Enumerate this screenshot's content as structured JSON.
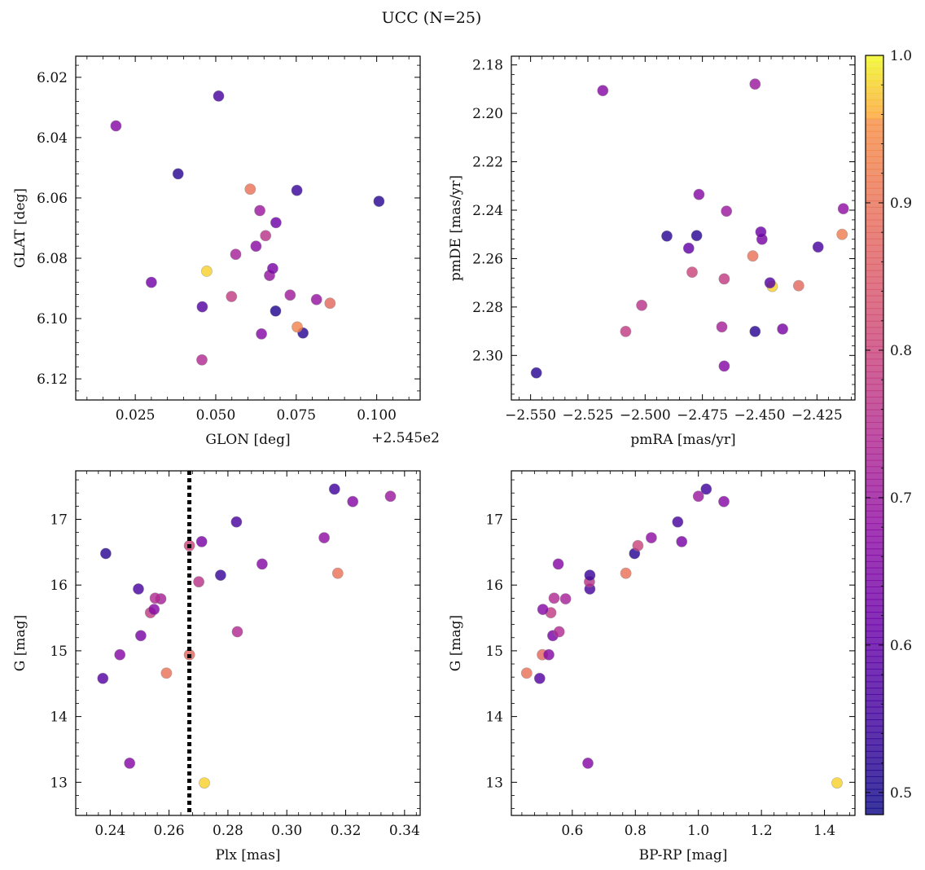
{
  "figure": {
    "title": "UCC (N=25)"
  },
  "colorbar": {
    "range": [
      0.485,
      1.0
    ],
    "ticks": [
      0.5,
      0.6,
      0.7,
      0.8,
      0.9,
      1.0
    ],
    "tick_labels": [
      "0.5",
      "0.6",
      "0.7",
      "0.8",
      "0.9",
      "1.0"
    ],
    "colormap": "plasma"
  },
  "chart_data": [
    {
      "type": "scatter",
      "xlabel": "GLON [deg]",
      "ylabel": "GLAT [deg]",
      "offset_text": "+2.545e2",
      "xlim": [
        254.5065,
        254.6135
      ],
      "ylim": [
        6.013,
        6.127
      ],
      "xticks": [
        254.525,
        254.55,
        254.575,
        254.6
      ],
      "xtick_labels": [
        "0.025",
        "0.050",
        "0.075",
        "0.100"
      ],
      "yticks": [
        6.02,
        6.04,
        6.06,
        6.08,
        6.1,
        6.12
      ],
      "ytick_labels": [
        "6.02",
        "6.04",
        "6.06",
        "6.08",
        "6.10",
        "6.12"
      ],
      "points": [
        {
          "x": 254.5457,
          "y": 6.1137,
          "c": 0.74
        },
        {
          "x": 254.5642,
          "y": 6.1051,
          "c": 0.66
        },
        {
          "x": 254.5771,
          "y": 6.1048,
          "c": 0.52
        },
        {
          "x": 254.5753,
          "y": 6.1028,
          "c": 0.93
        },
        {
          "x": 254.5458,
          "y": 6.0961,
          "c": 0.58
        },
        {
          "x": 254.5686,
          "y": 6.0975,
          "c": 0.51
        },
        {
          "x": 254.5855,
          "y": 6.0949,
          "c": 0.88
        },
        {
          "x": 254.5549,
          "y": 6.0927,
          "c": 0.78
        },
        {
          "x": 254.5813,
          "y": 6.0937,
          "c": 0.69
        },
        {
          "x": 254.5731,
          "y": 6.0922,
          "c": 0.71
        },
        {
          "x": 254.53,
          "y": 6.088,
          "c": 0.63
        },
        {
          "x": 254.5472,
          "y": 6.0843,
          "c": 0.98
        },
        {
          "x": 254.5667,
          "y": 6.0857,
          "c": 0.69
        },
        {
          "x": 254.5677,
          "y": 6.0834,
          "c": 0.64
        },
        {
          "x": 254.5562,
          "y": 6.0787,
          "c": 0.72
        },
        {
          "x": 254.5625,
          "y": 6.076,
          "c": 0.67
        },
        {
          "x": 254.5655,
          "y": 6.0725,
          "c": 0.76
        },
        {
          "x": 254.5687,
          "y": 6.0682,
          "c": 0.62
        },
        {
          "x": 254.5637,
          "y": 6.0642,
          "c": 0.7
        },
        {
          "x": 254.6007,
          "y": 6.0611,
          "c": 0.52
        },
        {
          "x": 254.5607,
          "y": 6.0571,
          "c": 0.9
        },
        {
          "x": 254.5752,
          "y": 6.0575,
          "c": 0.54
        },
        {
          "x": 254.5383,
          "y": 6.052,
          "c": 0.52
        },
        {
          "x": 254.519,
          "y": 6.0361,
          "c": 0.66
        },
        {
          "x": 254.5509,
          "y": 6.0262,
          "c": 0.56
        }
      ]
    },
    {
      "type": "scatter",
      "xlabel": "pmRA [mas/yr]",
      "ylabel": "pmDE [mas/yr]",
      "xlim": [
        -2.5584,
        -2.4084
      ],
      "ylim": [
        2.1764,
        2.3184
      ],
      "xticks": [
        -2.55,
        -2.525,
        -2.5,
        -2.475,
        -2.45,
        -2.425
      ],
      "xtick_labels": [
        "−2.550",
        "−2.525",
        "−2.500",
        "−2.475",
        "−2.450",
        "−2.425"
      ],
      "yticks": [
        2.18,
        2.2,
        2.22,
        2.24,
        2.26,
        2.28,
        2.3
      ],
      "ytick_labels": [
        "2.18",
        "2.20",
        "2.22",
        "2.24",
        "2.26",
        "2.28",
        "2.30"
      ],
      "points": [
        {
          "x": -2.5475,
          "y": 2.3072,
          "c": 0.52
        },
        {
          "x": -2.4655,
          "y": 2.3044,
          "c": 0.66
        },
        {
          "x": -2.5085,
          "y": 2.2901,
          "c": 0.78
        },
        {
          "x": -2.452,
          "y": 2.2901,
          "c": 0.52
        },
        {
          "x": -2.44,
          "y": 2.2891,
          "c": 0.64
        },
        {
          "x": -2.4665,
          "y": 2.2882,
          "c": 0.72
        },
        {
          "x": -2.5015,
          "y": 2.2793,
          "c": 0.76
        },
        {
          "x": -2.433,
          "y": 2.2712,
          "c": 0.88
        },
        {
          "x": -2.4445,
          "y": 2.2715,
          "c": 0.98
        },
        {
          "x": -2.4455,
          "y": 2.27,
          "c": 0.58
        },
        {
          "x": -2.4655,
          "y": 2.2684,
          "c": 0.78
        },
        {
          "x": -2.4795,
          "y": 2.2656,
          "c": 0.8
        },
        {
          "x": -2.453,
          "y": 2.2589,
          "c": 0.9
        },
        {
          "x": -2.481,
          "y": 2.2557,
          "c": 0.6
        },
        {
          "x": -2.4245,
          "y": 2.2552,
          "c": 0.56
        },
        {
          "x": -2.4905,
          "y": 2.2507,
          "c": 0.52
        },
        {
          "x": -2.4775,
          "y": 2.2505,
          "c": 0.52
        },
        {
          "x": -2.449,
          "y": 2.252,
          "c": 0.64
        },
        {
          "x": -2.4495,
          "y": 2.249,
          "c": 0.62
        },
        {
          "x": -2.414,
          "y": 2.25,
          "c": 0.92
        },
        {
          "x": -2.4645,
          "y": 2.2404,
          "c": 0.7
        },
        {
          "x": -2.4135,
          "y": 2.2394,
          "c": 0.68
        },
        {
          "x": -2.4765,
          "y": 2.2335,
          "c": 0.66
        },
        {
          "x": -2.5185,
          "y": 2.1906,
          "c": 0.66
        },
        {
          "x": -2.452,
          "y": 2.1879,
          "c": 0.7
        }
      ]
    },
    {
      "type": "scatter",
      "xlabel": "Plx [mas]",
      "ylabel": "G [mag]",
      "xlim": [
        0.2283,
        0.3453
      ],
      "ylim": [
        17.737,
        12.496
      ],
      "xticks": [
        0.24,
        0.26,
        0.28,
        0.3,
        0.32,
        0.34
      ],
      "xtick_labels": [
        "0.24",
        "0.26",
        "0.28",
        "0.30",
        "0.32",
        "0.34"
      ],
      "yticks": [
        13,
        14,
        15,
        16,
        17
      ],
      "ytick_labels": [
        "13",
        "14",
        "15",
        "16",
        "17"
      ],
      "vline": {
        "x": 0.2669,
        "style": "dotted"
      },
      "points": [
        {
          "x": 0.272,
          "y": 12.99,
          "c": 0.98
        },
        {
          "x": 0.2466,
          "y": 13.29,
          "c": 0.66
        },
        {
          "x": 0.2375,
          "y": 14.58,
          "c": 0.58
        },
        {
          "x": 0.2591,
          "y": 14.66,
          "c": 0.9
        },
        {
          "x": 0.2433,
          "y": 14.94,
          "c": 0.66
        },
        {
          "x": 0.2669,
          "y": 14.94,
          "c": 0.88
        },
        {
          "x": 0.2504,
          "y": 15.23,
          "c": 0.64
        },
        {
          "x": 0.2832,
          "y": 15.29,
          "c": 0.74
        },
        {
          "x": 0.2537,
          "y": 15.58,
          "c": 0.78
        },
        {
          "x": 0.2549,
          "y": 15.63,
          "c": 0.66
        },
        {
          "x": 0.2572,
          "y": 15.79,
          "c": 0.72
        },
        {
          "x": 0.2553,
          "y": 15.8,
          "c": 0.74
        },
        {
          "x": 0.2496,
          "y": 15.94,
          "c": 0.56
        },
        {
          "x": 0.2701,
          "y": 16.05,
          "c": 0.76
        },
        {
          "x": 0.2775,
          "y": 16.15,
          "c": 0.54
        },
        {
          "x": 0.3173,
          "y": 16.18,
          "c": 0.9
        },
        {
          "x": 0.2916,
          "y": 16.32,
          "c": 0.66
        },
        {
          "x": 0.2385,
          "y": 16.48,
          "c": 0.52
        },
        {
          "x": 0.2669,
          "y": 16.6,
          "c": 0.8
        },
        {
          "x": 0.2711,
          "y": 16.66,
          "c": 0.64
        },
        {
          "x": 0.3127,
          "y": 16.72,
          "c": 0.68
        },
        {
          "x": 0.2829,
          "y": 16.96,
          "c": 0.56
        },
        {
          "x": 0.3224,
          "y": 17.27,
          "c": 0.66
        },
        {
          "x": 0.3352,
          "y": 17.35,
          "c": 0.7
        },
        {
          "x": 0.3162,
          "y": 17.46,
          "c": 0.55
        }
      ]
    },
    {
      "type": "scatter",
      "xlabel": "BP-RP [mag]",
      "ylabel": "G [mag]",
      "xlim": [
        0.4067,
        1.4967
      ],
      "ylim": [
        17.737,
        12.496
      ],
      "xticks": [
        0.6,
        0.8,
        1.0,
        1.2,
        1.4
      ],
      "xtick_labels": [
        "0.6",
        "0.8",
        "1.0",
        "1.2",
        "1.4"
      ],
      "yticks": [
        13,
        14,
        15,
        16,
        17
      ],
      "ytick_labels": [
        "13",
        "14",
        "15",
        "16",
        "17"
      ],
      "points": [
        {
          "x": 1.4398,
          "y": 12.99,
          "c": 0.98
        },
        {
          "x": 0.6496,
          "y": 13.29,
          "c": 0.66
        },
        {
          "x": 0.4967,
          "y": 14.58,
          "c": 0.58
        },
        {
          "x": 0.4553,
          "y": 14.66,
          "c": 0.9
        },
        {
          "x": 0.5052,
          "y": 14.94,
          "c": 0.88
        },
        {
          "x": 0.5255,
          "y": 14.94,
          "c": 0.66
        },
        {
          "x": 0.5383,
          "y": 15.23,
          "c": 0.64
        },
        {
          "x": 0.5583,
          "y": 15.29,
          "c": 0.74
        },
        {
          "x": 0.5321,
          "y": 15.58,
          "c": 0.78
        },
        {
          "x": 0.5066,
          "y": 15.63,
          "c": 0.66
        },
        {
          "x": 0.5787,
          "y": 15.79,
          "c": 0.72
        },
        {
          "x": 0.5424,
          "y": 15.8,
          "c": 0.74
        },
        {
          "x": 0.6558,
          "y": 15.94,
          "c": 0.56
        },
        {
          "x": 0.6545,
          "y": 16.05,
          "c": 0.76
        },
        {
          "x": 0.6558,
          "y": 16.15,
          "c": 0.54
        },
        {
          "x": 0.7699,
          "y": 16.18,
          "c": 0.9
        },
        {
          "x": 0.5555,
          "y": 16.32,
          "c": 0.66
        },
        {
          "x": 0.7976,
          "y": 16.48,
          "c": 0.52
        },
        {
          "x": 0.808,
          "y": 16.6,
          "c": 0.8
        },
        {
          "x": 0.9471,
          "y": 16.66,
          "c": 0.64
        },
        {
          "x": 0.8507,
          "y": 16.72,
          "c": 0.68
        },
        {
          "x": 0.9345,
          "y": 16.96,
          "c": 0.56
        },
        {
          "x": 1.0809,
          "y": 17.27,
          "c": 0.66
        },
        {
          "x": 1.0,
          "y": 17.35,
          "c": 0.7
        },
        {
          "x": 1.0247,
          "y": 17.46,
          "c": 0.55
        }
      ]
    }
  ]
}
